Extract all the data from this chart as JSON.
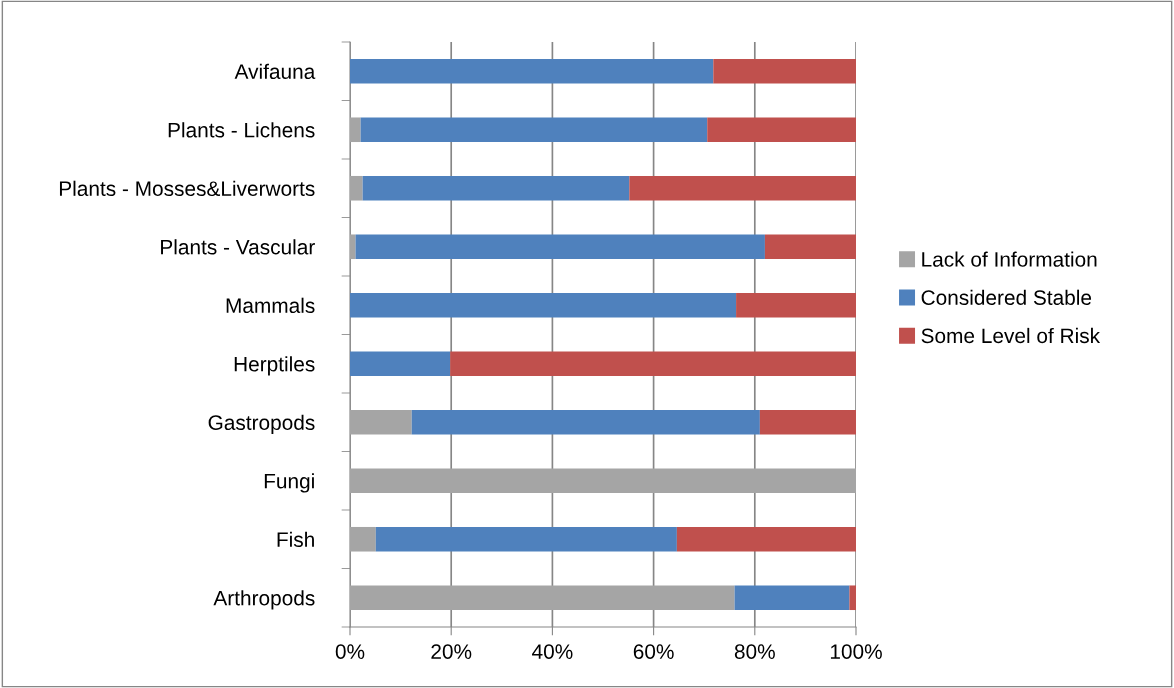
{
  "chart_data": {
    "type": "bar",
    "orientation": "horizontal",
    "stacked": true,
    "categories": [
      "Avifauna",
      "Plants - Lichens",
      "Plants - Mosses&Liverworts",
      "Plants - Vascular",
      "Mammals",
      "Herptiles",
      "Gastropods",
      "Fungi",
      "Fish",
      "Arthropods"
    ],
    "series": [
      {
        "name": "Lack of Information",
        "color": "#a5a5a5",
        "values": [
          0,
          2.1,
          2.5,
          1.1,
          0,
          0,
          12.2,
          100,
          5.1,
          76.0
        ]
      },
      {
        "name": "Considered Stable",
        "color": "#4f81bd",
        "values": [
          71.8,
          68.5,
          52.7,
          80.9,
          76.3,
          19.8,
          68.8,
          0,
          59.5,
          22.7
        ]
      },
      {
        "name": "Some Level of Risk",
        "color": "#c0504d",
        "values": [
          28.2,
          29.4,
          44.8,
          18.0,
          23.7,
          80.2,
          19.0,
          0,
          35.4,
          1.3
        ]
      }
    ],
    "xlim": [
      0,
      100
    ],
    "xticks": [
      {
        "value": 0,
        "label": "0%"
      },
      {
        "value": 20,
        "label": "20%"
      },
      {
        "value": 40,
        "label": "40%"
      },
      {
        "value": 60,
        "label": "60%"
      },
      {
        "value": 80,
        "label": "80%"
      },
      {
        "value": 100,
        "label": "100%"
      }
    ],
    "grid": "x",
    "legend": "right"
  }
}
